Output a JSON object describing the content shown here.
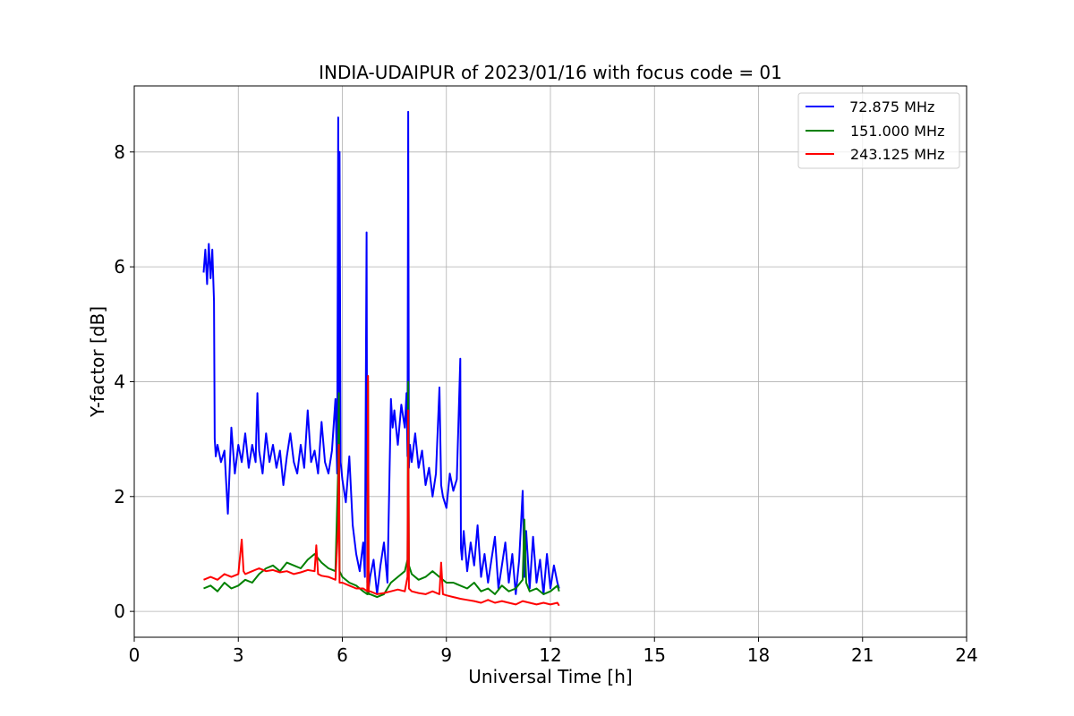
{
  "chart_data": {
    "type": "line",
    "title": "INDIA-UDAIPUR of 2023/01/16 with focus code = 01",
    "xlabel": "Universal Time [h]",
    "ylabel": "Y-factor [dB]",
    "xlim": [
      0,
      24
    ],
    "ylim": [
      -0.45,
      9.15
    ],
    "xticks": [
      0,
      3,
      6,
      9,
      12,
      15,
      18,
      21,
      24
    ],
    "yticks": [
      0,
      2,
      4,
      6,
      8
    ],
    "grid": true,
    "legend_position": "top-right",
    "series": [
      {
        "name": " 72.875 MHz",
        "color": "#0000ff",
        "x": [
          2.0,
          2.05,
          2.1,
          2.15,
          2.2,
          2.25,
          2.3,
          2.32,
          2.35,
          2.4,
          2.5,
          2.6,
          2.7,
          2.8,
          2.9,
          3.0,
          3.1,
          3.2,
          3.3,
          3.4,
          3.5,
          3.55,
          3.6,
          3.7,
          3.8,
          3.9,
          4.0,
          4.1,
          4.2,
          4.3,
          4.4,
          4.5,
          4.6,
          4.7,
          4.8,
          4.9,
          5.0,
          5.1,
          5.2,
          5.3,
          5.4,
          5.5,
          5.6,
          5.7,
          5.8,
          5.85,
          5.88,
          5.9,
          5.92,
          5.95,
          6.0,
          6.1,
          6.2,
          6.3,
          6.4,
          6.5,
          6.6,
          6.65,
          6.7,
          6.72,
          6.74,
          6.76,
          6.8,
          6.9,
          7.0,
          7.1,
          7.2,
          7.3,
          7.4,
          7.45,
          7.5,
          7.6,
          7.7,
          7.8,
          7.85,
          7.88,
          7.9,
          7.92,
          7.95,
          8.0,
          8.1,
          8.2,
          8.3,
          8.4,
          8.5,
          8.6,
          8.7,
          8.8,
          8.85,
          8.9,
          9.0,
          9.1,
          9.2,
          9.3,
          9.4,
          9.42,
          9.45,
          9.5,
          9.6,
          9.7,
          9.8,
          9.9,
          10.0,
          10.1,
          10.2,
          10.3,
          10.4,
          10.5,
          10.6,
          10.7,
          10.8,
          10.9,
          11.0,
          11.1,
          11.2,
          11.25,
          11.3,
          11.4,
          11.5,
          11.6,
          11.7,
          11.8,
          11.9,
          12.0,
          12.1,
          12.2,
          12.25
        ],
        "y": [
          5.9,
          6.3,
          5.7,
          6.4,
          5.8,
          6.3,
          5.4,
          3.0,
          2.7,
          2.9,
          2.6,
          2.8,
          1.7,
          3.2,
          2.4,
          2.9,
          2.6,
          3.1,
          2.5,
          2.9,
          2.6,
          3.8,
          2.8,
          2.4,
          3.1,
          2.6,
          2.9,
          2.5,
          2.8,
          2.2,
          2.7,
          3.1,
          2.6,
          2.4,
          2.9,
          2.5,
          3.5,
          2.6,
          2.8,
          2.4,
          3.3,
          2.6,
          2.4,
          2.8,
          3.7,
          2.4,
          8.6,
          2.0,
          8.0,
          2.6,
          2.3,
          1.9,
          2.7,
          1.5,
          1.0,
          0.7,
          1.2,
          0.6,
          6.6,
          0.5,
          1.5,
          0.4,
          0.6,
          0.9,
          0.3,
          0.8,
          1.2,
          0.5,
          3.7,
          3.2,
          3.5,
          2.9,
          3.6,
          3.2,
          3.8,
          2.7,
          8.7,
          2.5,
          2.9,
          2.6,
          3.1,
          2.5,
          2.8,
          2.2,
          2.5,
          2.0,
          2.4,
          3.9,
          2.2,
          2.0,
          1.8,
          2.4,
          2.1,
          2.3,
          4.4,
          1.1,
          0.9,
          1.4,
          0.7,
          1.2,
          0.8,
          1.5,
          0.6,
          1.0,
          0.5,
          0.9,
          1.3,
          0.4,
          0.8,
          1.2,
          0.5,
          1.0,
          0.3,
          0.9,
          2.1,
          0.6,
          1.4,
          0.4,
          1.3,
          0.5,
          0.9,
          0.3,
          1.0,
          0.4,
          0.8,
          0.5,
          0.4
        ]
      },
      {
        "name": "151.000 MHz",
        "color": "#008000",
        "x": [
          2.0,
          2.2,
          2.4,
          2.6,
          2.8,
          3.0,
          3.2,
          3.4,
          3.6,
          3.8,
          4.0,
          4.2,
          4.4,
          4.6,
          4.8,
          5.0,
          5.2,
          5.4,
          5.6,
          5.8,
          5.88,
          5.9,
          5.92,
          6.0,
          6.2,
          6.4,
          6.6,
          6.72,
          6.74,
          6.76,
          6.8,
          7.0,
          7.2,
          7.4,
          7.6,
          7.8,
          7.88,
          7.9,
          7.92,
          8.0,
          8.2,
          8.4,
          8.6,
          8.8,
          9.0,
          9.2,
          9.4,
          9.6,
          9.8,
          10.0,
          10.2,
          10.4,
          10.6,
          10.8,
          11.0,
          11.2,
          11.25,
          11.3,
          11.4,
          11.6,
          11.8,
          12.0,
          12.2,
          12.25
        ],
        "y": [
          0.4,
          0.45,
          0.35,
          0.5,
          0.4,
          0.45,
          0.55,
          0.5,
          0.65,
          0.75,
          0.8,
          0.7,
          0.85,
          0.8,
          0.75,
          0.9,
          1.0,
          0.85,
          0.75,
          0.7,
          2.5,
          3.8,
          0.7,
          0.6,
          0.5,
          0.45,
          0.35,
          0.3,
          4.0,
          0.3,
          0.3,
          0.25,
          0.3,
          0.5,
          0.6,
          0.7,
          0.9,
          4.0,
          0.8,
          0.65,
          0.55,
          0.6,
          0.7,
          0.6,
          0.5,
          0.5,
          0.45,
          0.4,
          0.5,
          0.35,
          0.4,
          0.3,
          0.45,
          0.35,
          0.4,
          0.55,
          1.6,
          0.5,
          0.35,
          0.4,
          0.3,
          0.35,
          0.45,
          0.35
        ]
      },
      {
        "name": "243.125 MHz",
        "color": "#ff0000",
        "x": [
          2.0,
          2.2,
          2.4,
          2.6,
          2.8,
          3.0,
          3.1,
          3.15,
          3.2,
          3.4,
          3.6,
          3.8,
          4.0,
          4.2,
          4.4,
          4.6,
          4.8,
          5.0,
          5.2,
          5.25,
          5.3,
          5.4,
          5.6,
          5.8,
          5.88,
          5.9,
          5.92,
          6.0,
          6.2,
          6.4,
          6.6,
          6.72,
          6.74,
          6.76,
          6.8,
          7.0,
          7.2,
          7.4,
          7.6,
          7.8,
          7.88,
          7.9,
          7.92,
          8.0,
          8.2,
          8.4,
          8.6,
          8.8,
          8.85,
          8.9,
          9.0,
          9.2,
          9.4,
          9.6,
          9.8,
          10.0,
          10.2,
          10.4,
          10.6,
          10.8,
          11.0,
          11.2,
          11.4,
          11.6,
          11.8,
          12.0,
          12.2,
          12.25
        ],
        "y": [
          0.55,
          0.6,
          0.55,
          0.65,
          0.6,
          0.65,
          1.25,
          0.7,
          0.65,
          0.7,
          0.75,
          0.7,
          0.72,
          0.68,
          0.7,
          0.65,
          0.68,
          0.72,
          0.7,
          1.15,
          0.65,
          0.62,
          0.6,
          0.55,
          1.5,
          2.9,
          0.5,
          0.5,
          0.45,
          0.4,
          0.4,
          0.35,
          4.1,
          0.35,
          0.35,
          0.3,
          0.32,
          0.35,
          0.38,
          0.35,
          0.6,
          3.5,
          0.4,
          0.35,
          0.32,
          0.3,
          0.35,
          0.3,
          0.85,
          0.3,
          0.28,
          0.25,
          0.22,
          0.2,
          0.18,
          0.15,
          0.2,
          0.15,
          0.18,
          0.15,
          0.12,
          0.18,
          0.15,
          0.12,
          0.15,
          0.12,
          0.15,
          0.1
        ]
      }
    ]
  }
}
